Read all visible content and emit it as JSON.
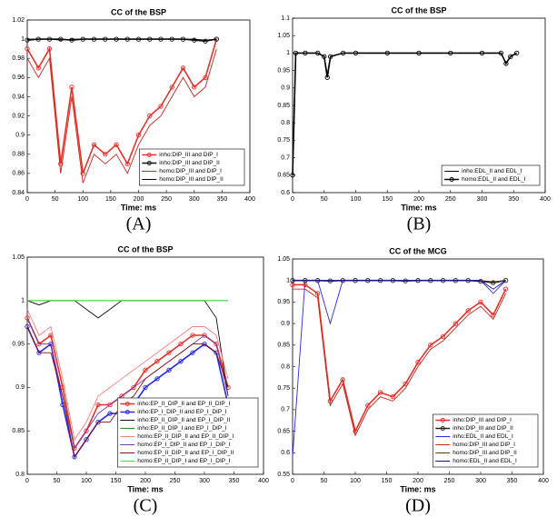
{
  "chart_data": [
    {
      "type": "line",
      "title": "CC of the BSP",
      "panel_label": "(A)",
      "x_label": "Time: ms",
      "x": [
        0,
        20,
        40,
        60,
        80,
        100,
        120,
        140,
        160,
        180,
        200,
        220,
        240,
        260,
        280,
        300,
        320,
        340
      ],
      "xlim": [
        0,
        400
      ],
      "xticks": [
        0,
        50,
        100,
        150,
        200,
        250,
        300,
        350,
        400
      ],
      "ylim": [
        0.84,
        1.02
      ],
      "yticks": [
        0.84,
        0.86,
        0.88,
        0.9,
        0.92,
        0.94,
        0.96,
        0.98,
        1,
        1.02
      ],
      "legend": "lower right",
      "series": [
        {
          "name": "inho:DIP_III and DIP_I",
          "color": "#e8302a",
          "marker": "o",
          "values": [
            0.99,
            0.97,
            0.99,
            0.87,
            0.95,
            0.86,
            0.89,
            0.88,
            0.89,
            0.87,
            0.9,
            0.92,
            0.93,
            0.95,
            0.97,
            0.95,
            0.96,
            1.0
          ]
        },
        {
          "name": "inho:DIP_III and DIP_II",
          "color": "#111111",
          "marker": "o",
          "values": [
            0.999,
            1,
            1,
            1,
            0.999,
            1,
            1,
            1,
            1,
            1,
            1,
            1,
            1,
            1,
            1,
            0.999,
            0.998,
            1
          ]
        },
        {
          "name": "homo:DIP_III and DIP_I",
          "color": "#c0281f",
          "marker": "none",
          "values": [
            0.98,
            0.96,
            0.98,
            0.86,
            0.94,
            0.85,
            0.88,
            0.87,
            0.88,
            0.86,
            0.89,
            0.91,
            0.92,
            0.94,
            0.96,
            0.94,
            0.95,
            0.99
          ]
        },
        {
          "name": "homo:DIP_III and DIP_II",
          "color": "#000000",
          "marker": "none",
          "values": [
            1,
            1,
            1,
            0.999,
            1,
            1,
            1,
            1,
            1,
            1,
            1,
            1,
            1,
            1,
            1,
            1,
            0.999,
            1
          ]
        }
      ]
    },
    {
      "type": "line",
      "title": "CC of the BSP",
      "panel_label": "(B)",
      "x_label": "Time: ms",
      "x": [
        0,
        5,
        20,
        40,
        50,
        55,
        60,
        80,
        100,
        150,
        200,
        250,
        300,
        330,
        338,
        345,
        355
      ],
      "xlim": [
        0,
        400
      ],
      "xticks": [
        0,
        50,
        100,
        150,
        200,
        250,
        300,
        350,
        400
      ],
      "ylim": [
        0.6,
        1.1
      ],
      "yticks": [
        0.6,
        0.65,
        0.7,
        0.75,
        0.8,
        0.85,
        0.9,
        0.95,
        1,
        1.05,
        1.1
      ],
      "legend": "lower right",
      "series": [
        {
          "name": "inho:EDL_II and EDL_I",
          "color": "#000000",
          "marker": "none",
          "values": [
            0.65,
            1,
            1,
            1,
            0.99,
            0.94,
            0.99,
            1,
            1,
            1,
            1,
            1,
            1,
            1,
            0.97,
            0.99,
            1
          ]
        },
        {
          "name": "homo:EDL_II and EDL_I",
          "color": "#000000",
          "marker": "o",
          "values": [
            0.65,
            1,
            1,
            1,
            0.99,
            0.93,
            0.99,
            1,
            1,
            1,
            1,
            1,
            1,
            1,
            0.97,
            0.99,
            1
          ]
        }
      ]
    },
    {
      "type": "line",
      "title": "CC of the BSP",
      "panel_label": "(C)",
      "x_label": "Time: ms",
      "x": [
        0,
        20,
        40,
        60,
        80,
        100,
        120,
        140,
        160,
        180,
        200,
        220,
        240,
        260,
        280,
        300,
        320,
        340
      ],
      "xlim": [
        0,
        400
      ],
      "xticks": [
        0,
        50,
        100,
        150,
        200,
        250,
        300,
        350,
        400
      ],
      "ylim": [
        0.8,
        1.05
      ],
      "yticks": [
        0.8,
        0.85,
        0.9,
        0.95,
        1,
        1.05
      ],
      "legend": "lower right",
      "series": [
        {
          "name": "inho:EP_II_DIP_II and EP_II_DIP_I",
          "color": "#e8302a",
          "marker": "o",
          "values": [
            0.98,
            0.95,
            0.96,
            0.9,
            0.83,
            0.85,
            0.88,
            0.88,
            0.89,
            0.9,
            0.92,
            0.93,
            0.94,
            0.95,
            0.96,
            0.96,
            0.95,
            0.9
          ]
        },
        {
          "name": "inho:EP_I_DIP_II and EP_I_DIP_I",
          "color": "#2a2ae0",
          "marker": "o",
          "values": [
            0.97,
            0.94,
            0.95,
            0.88,
            0.82,
            0.84,
            0.86,
            0.87,
            0.87,
            0.88,
            0.9,
            0.91,
            0.92,
            0.93,
            0.94,
            0.95,
            0.94,
            0.88
          ]
        },
        {
          "name": "inho:EP_II_DIP_II and EP_I_DIP_II",
          "color": "#111111",
          "marker": "none",
          "values": [
            1,
            0.995,
            1,
            1,
            1,
            0.99,
            0.98,
            0.99,
            1,
            1,
            1,
            1,
            1,
            1,
            1,
            1,
            0.98,
            0.89
          ]
        },
        {
          "name": "inho:EP_II_DIP_I and EP_I_DIP_I",
          "color": "#1a9a1a",
          "marker": "none",
          "values": [
            1,
            1,
            1,
            1,
            1,
            1,
            1,
            1,
            1,
            1,
            1,
            1,
            1,
            1,
            1,
            1,
            1,
            1
          ]
        },
        {
          "name": "homo:EP_II_DIP_II and EP_II_DIP_I",
          "color": "#f08080",
          "marker": "none",
          "values": [
            0.99,
            0.96,
            0.97,
            0.91,
            0.84,
            0.86,
            0.89,
            0.9,
            0.91,
            0.92,
            0.93,
            0.94,
            0.95,
            0.96,
            0.97,
            0.97,
            0.96,
            0.91
          ]
        },
        {
          "name": "homo:EP_I_DIP_II and EP_I_DIP_I",
          "color": "#7a3ab0",
          "marker": "none",
          "values": [
            0.98,
            0.95,
            0.95,
            0.89,
            0.83,
            0.85,
            0.87,
            0.88,
            0.89,
            0.9,
            0.91,
            0.92,
            0.93,
            0.94,
            0.95,
            0.96,
            0.95,
            0.89
          ]
        },
        {
          "name": "homo:EP_II_DIP_II and EP_I_DIP_II",
          "color": "#8a1010",
          "marker": "none",
          "values": [
            0.97,
            0.94,
            0.94,
            0.89,
            0.82,
            0.84,
            0.86,
            0.86,
            0.88,
            0.89,
            0.91,
            0.92,
            0.93,
            0.94,
            0.95,
            0.95,
            0.94,
            0.9
          ]
        },
        {
          "name": "homo:EP_II_DIP_I and EP_I_DIP_I",
          "color": "#40e040",
          "marker": "none",
          "values": [
            1,
            1,
            1,
            1,
            1,
            1,
            1,
            1,
            1,
            1,
            1,
            1,
            1,
            1,
            1,
            1,
            1,
            1
          ]
        }
      ]
    },
    {
      "type": "line",
      "title": "CC of the MCG",
      "panel_label": "(D)",
      "x_label": "Time: ms",
      "x": [
        0,
        20,
        40,
        60,
        80,
        100,
        120,
        140,
        160,
        180,
        200,
        220,
        240,
        260,
        280,
        300,
        320,
        340
      ],
      "xlim": [
        0,
        400
      ],
      "xticks": [
        0,
        50,
        100,
        150,
        200,
        250,
        300,
        350,
        400
      ],
      "ylim": [
        0.55,
        1.05
      ],
      "yticks": [
        0.55,
        0.6,
        0.65,
        0.7,
        0.75,
        0.8,
        0.85,
        0.9,
        0.95,
        1,
        1.05
      ],
      "legend": "lower right",
      "series": [
        {
          "name": "inho:DIP_III and DIP_I",
          "color": "#e8302a",
          "marker": "o",
          "values": [
            0.99,
            0.99,
            0.97,
            0.72,
            0.77,
            0.65,
            0.71,
            0.74,
            0.73,
            0.76,
            0.81,
            0.85,
            0.87,
            0.9,
            0.93,
            0.95,
            0.92,
            0.98
          ]
        },
        {
          "name": "inho:DIP_III and DIP_II",
          "color": "#222222",
          "marker": "o",
          "values": [
            1,
            1,
            1,
            0.999,
            1,
            1,
            1,
            1,
            1,
            0.999,
            1,
            1,
            1,
            1,
            1,
            0.998,
            0.995,
            1
          ]
        },
        {
          "name": "inho:EDL_II and EDL_I",
          "color": "#2a2ae0",
          "marker": "none",
          "values": [
            0.59,
            1,
            1,
            0.9,
            1,
            1,
            1,
            1,
            1,
            1,
            1,
            1,
            1,
            1,
            1,
            1,
            0.97,
            1
          ]
        },
        {
          "name": "homo:DIP_III and DIP_I",
          "color": "#c0281f",
          "marker": "none",
          "values": [
            0.98,
            0.98,
            0.96,
            0.71,
            0.76,
            0.64,
            0.7,
            0.73,
            0.72,
            0.75,
            0.8,
            0.84,
            0.86,
            0.89,
            0.92,
            0.94,
            0.91,
            0.97
          ]
        },
        {
          "name": "homo:DIP_III and DIP_II",
          "color": "#5a3a10",
          "marker": "none",
          "values": [
            1,
            1,
            1,
            1,
            1,
            1,
            1,
            1,
            1,
            1,
            1,
            1,
            1,
            1,
            1,
            1,
            0.997,
            1
          ]
        },
        {
          "name": "homo:EDL_II and EDL_I",
          "color": "#1010a0",
          "marker": "none",
          "values": [
            1,
            1,
            1,
            1,
            1,
            1,
            1,
            1,
            1,
            1,
            1,
            1,
            1,
            1,
            1,
            1,
            0.98,
            1
          ]
        }
      ]
    }
  ]
}
